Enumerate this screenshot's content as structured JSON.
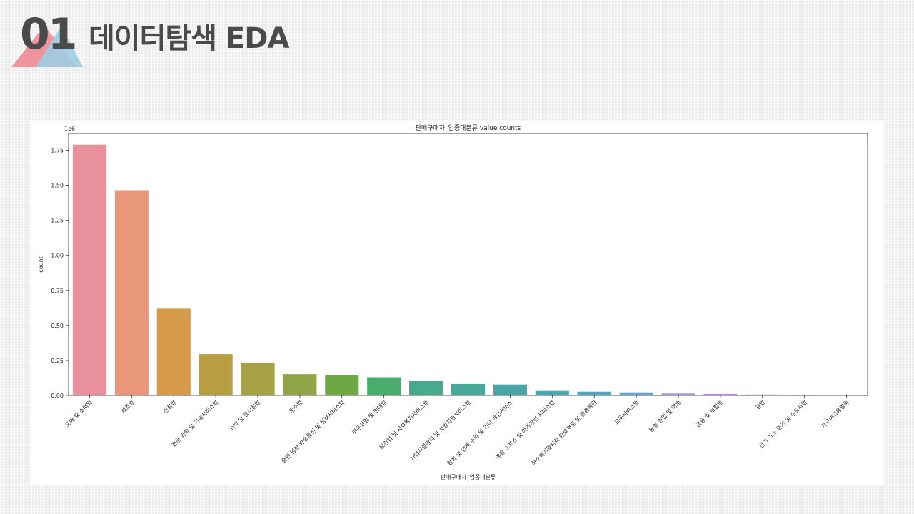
{
  "header": {
    "number": "01",
    "title": "데이터탐색 EDA",
    "logo_colors": {
      "left_triangle": "#ee8d98",
      "right_triangle": "#9dcde3"
    }
  },
  "chart_data": {
    "type": "bar",
    "title": "판매구매자_업종대분류 value counts",
    "xlabel": "판매구매자_업종대분류",
    "ylabel": "count",
    "y_offset_label": "1e6",
    "ylim": [
      0,
      1870000
    ],
    "yticks": [
      0,
      250000,
      500000,
      750000,
      1000000,
      1250000,
      1500000,
      1750000
    ],
    "ytick_labels": [
      "0.00",
      "0.25",
      "0.50",
      "0.75",
      "1.00",
      "1.25",
      "1.50",
      "1.75"
    ],
    "grid": false,
    "categories": [
      "도매 및 소매업",
      "제조업",
      "건설업",
      "전문 과학 및 기술서비스업",
      "숙박 및 음식점업",
      "운수업",
      "출판 영상 방송통신 및 정보서비스업",
      "부동산업 및 임대업",
      "보건업 및 사회복지서비스업",
      "사업시설관리 및 사업지원서비스업",
      "협회 및 단체 수리 및 기타 개인서비스",
      "예술 스포츠 및 여가관련 서비스업",
      "하수폐기물처리 원료재생 및 환경복원",
      "교육서비스업",
      "농업 임업 및 어업",
      "금융 및 보험업",
      "광업",
      "전기 가스 증기 및 수도사업",
      "가구내고용활동"
    ],
    "values": [
      1790000,
      1465000,
      620000,
      295000,
      235000,
      152000,
      148000,
      130000,
      105000,
      82000,
      78000,
      32000,
      27000,
      22000,
      14000,
      11000,
      6000,
      1500,
      500
    ],
    "colors": [
      "#e8919d",
      "#e8977b",
      "#d59a4a",
      "#b99d42",
      "#a7a145",
      "#91a346",
      "#6ea845",
      "#48ac6c",
      "#47aa8c",
      "#48a89a",
      "#4aa6a6",
      "#4aa7b4",
      "#4fa8c1",
      "#6aa4d5",
      "#9a9ee3",
      "#bb8fe0",
      "#d288db",
      "#e487c9",
      "#e88ab5"
    ]
  }
}
